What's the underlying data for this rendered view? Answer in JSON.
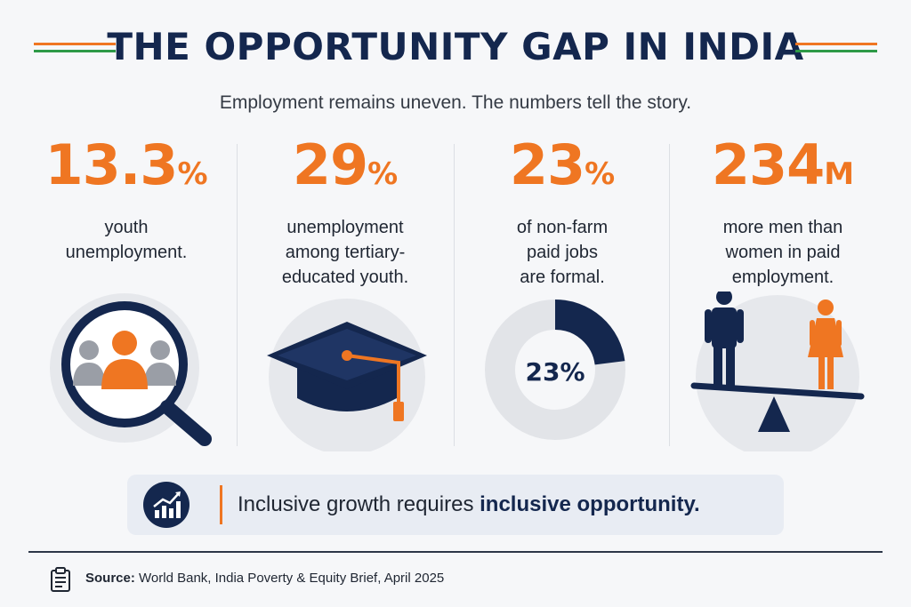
{
  "title": "THE OPPORTUNITY GAP IN INDIA",
  "subtitle": "Employment remains uneven. The numbers tell the story.",
  "colors": {
    "accent": "#ef7622",
    "navy": "#14274e",
    "green": "#2e9a47",
    "gray": "#e6e8ec"
  },
  "stats": [
    {
      "value": "13.3",
      "unit": "%",
      "line1": "youth",
      "line2": "unemployment.",
      "line3": "",
      "icon": "magnifier-people-icon"
    },
    {
      "value": "29",
      "unit": "%",
      "line1": "unemployment",
      "line2": "among tertiary-",
      "line3": "educated youth.",
      "icon": "graduation-cap-icon"
    },
    {
      "value": "23",
      "unit": "%",
      "line1": "of non-farm",
      "line2": "paid jobs",
      "line3": "are formal.",
      "icon": "donut-chart-icon",
      "donut_label": "23%",
      "donut_fraction": 0.23
    },
    {
      "value": "234",
      "unit": "M",
      "line1": "more men than",
      "line2": "women in paid",
      "line3": "employment.",
      "icon": "gender-scale-icon"
    }
  ],
  "banner": {
    "text_normal": "Inclusive growth requires ",
    "text_bold": "inclusive opportunity."
  },
  "footer": {
    "source_label": "Source:",
    "source_text": " World Bank, India Poverty & Equity Brief, April 2025"
  }
}
